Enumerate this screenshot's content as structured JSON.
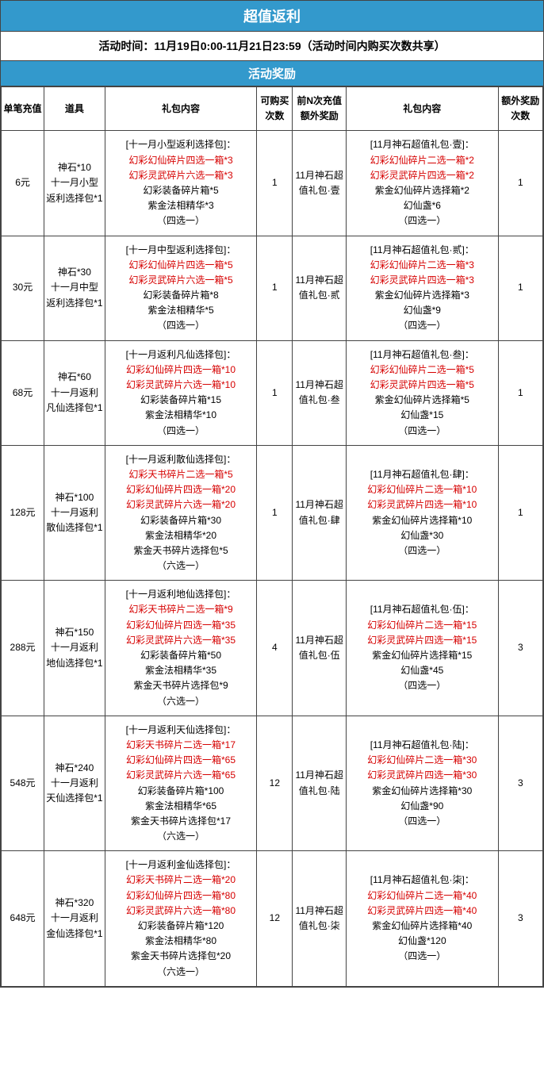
{
  "header": {
    "title": "超值返利"
  },
  "subheader": {
    "text": "活动时间：11月19日0:00-11月21日23:59（活动时间内购买次数共享）"
  },
  "section": {
    "title": "活动奖励"
  },
  "columns": {
    "c1": "单笔充值",
    "c2": "道具",
    "c3": "礼包内容",
    "c4": "可购买次数",
    "c5": "前N次充值额外奖励",
    "c6": "礼包内容",
    "c7": "额外奖励次数"
  },
  "rows": [
    {
      "price": "6元",
      "item": "神石*10\n十一月小型返利选择包*1",
      "content1": [
        {
          "t": "[十一月小型返利选择包]：",
          "c": "black"
        },
        {
          "t": "幻彩幻仙碎片四选一箱*3",
          "c": "red"
        },
        {
          "t": "幻彩灵武碎片六选一箱*3",
          "c": "red"
        },
        {
          "t": "幻彩装备碎片箱*5",
          "c": "black"
        },
        {
          "t": "紫金法相精华*3",
          "c": "black"
        },
        {
          "t": "（四选一）",
          "c": "black"
        }
      ],
      "count": "1",
      "reward": "11月神石超值礼包·壹",
      "content2": [
        {
          "t": "[11月神石超值礼包·壹]：",
          "c": "black"
        },
        {
          "t": "幻彩幻仙碎片二选一箱*2",
          "c": "red"
        },
        {
          "t": "幻彩灵武碎片四选一箱*2",
          "c": "red"
        },
        {
          "t": "紫金幻仙碎片选择箱*2",
          "c": "black"
        },
        {
          "t": "幻仙盏*6",
          "c": "black"
        },
        {
          "t": "（四选一）",
          "c": "black"
        }
      ],
      "extracount": "1"
    },
    {
      "price": "30元",
      "item": "神石*30\n十一月中型返利选择包*1",
      "content1": [
        {
          "t": "[十一月中型返利选择包]：",
          "c": "black"
        },
        {
          "t": "幻彩幻仙碎片四选一箱*5",
          "c": "red"
        },
        {
          "t": "幻彩灵武碎片六选一箱*5",
          "c": "red"
        },
        {
          "t": "幻彩装备碎片箱*8",
          "c": "black"
        },
        {
          "t": "紫金法相精华*5",
          "c": "black"
        },
        {
          "t": "（四选一）",
          "c": "black"
        }
      ],
      "count": "1",
      "reward": "11月神石超值礼包·贰",
      "content2": [
        {
          "t": "[11月神石超值礼包·贰]：",
          "c": "black"
        },
        {
          "t": "幻彩幻仙碎片二选一箱*3",
          "c": "red"
        },
        {
          "t": "幻彩灵武碎片四选一箱*3",
          "c": "red"
        },
        {
          "t": "紫金幻仙碎片选择箱*3",
          "c": "black"
        },
        {
          "t": "幻仙盏*9",
          "c": "black"
        },
        {
          "t": "（四选一）",
          "c": "black"
        }
      ],
      "extracount": "1"
    },
    {
      "price": "68元",
      "item": "神石*60\n十一月返利凡仙选择包*1",
      "content1": [
        {
          "t": "[十一月返利凡仙选择包]：",
          "c": "black"
        },
        {
          "t": "幻彩幻仙碎片四选一箱*10",
          "c": "red"
        },
        {
          "t": "幻彩灵武碎片六选一箱*10",
          "c": "red"
        },
        {
          "t": "幻彩装备碎片箱*15",
          "c": "black"
        },
        {
          "t": "紫金法相精华*10",
          "c": "black"
        },
        {
          "t": "（四选一）",
          "c": "black"
        }
      ],
      "count": "1",
      "reward": "11月神石超值礼包·叁",
      "content2": [
        {
          "t": "[11月神石超值礼包·叁]：",
          "c": "black"
        },
        {
          "t": "幻彩幻仙碎片二选一箱*5",
          "c": "red"
        },
        {
          "t": "幻彩灵武碎片四选一箱*5",
          "c": "red"
        },
        {
          "t": "紫金幻仙碎片选择箱*5",
          "c": "black"
        },
        {
          "t": "幻仙盏*15",
          "c": "black"
        },
        {
          "t": "（四选一）",
          "c": "black"
        }
      ],
      "extracount": "1"
    },
    {
      "price": "128元",
      "item": "神石*100\n十一月返利散仙选择包*1",
      "content1": [
        {
          "t": "[十一月返利散仙选择包]：",
          "c": "black"
        },
        {
          "t": "幻彩天书碎片二选一箱*5",
          "c": "red"
        },
        {
          "t": "幻彩幻仙碎片四选一箱*20",
          "c": "red"
        },
        {
          "t": "幻彩灵武碎片六选一箱*20",
          "c": "red"
        },
        {
          "t": "幻彩装备碎片箱*30",
          "c": "black"
        },
        {
          "t": "紫金法相精华*20",
          "c": "black"
        },
        {
          "t": "紫金天书碎片选择包*5",
          "c": "black"
        },
        {
          "t": "（六选一）",
          "c": "black"
        }
      ],
      "count": "1",
      "reward": "11月神石超值礼包·肆",
      "content2": [
        {
          "t": "[11月神石超值礼包·肆]：",
          "c": "black"
        },
        {
          "t": "幻彩幻仙碎片二选一箱*10",
          "c": "red"
        },
        {
          "t": "幻彩灵武碎片四选一箱*10",
          "c": "red"
        },
        {
          "t": "紫金幻仙碎片选择箱*10",
          "c": "black"
        },
        {
          "t": "幻仙盏*30",
          "c": "black"
        },
        {
          "t": "（四选一）",
          "c": "black"
        }
      ],
      "extracount": "1"
    },
    {
      "price": "288元",
      "item": "神石*150\n十一月返利地仙选择包*1",
      "content1": [
        {
          "t": "[十一月返利地仙选择包]：",
          "c": "black"
        },
        {
          "t": "幻彩天书碎片二选一箱*9",
          "c": "red"
        },
        {
          "t": "幻彩幻仙碎片四选一箱*35",
          "c": "red"
        },
        {
          "t": "幻彩灵武碎片六选一箱*35",
          "c": "red"
        },
        {
          "t": "幻彩装备碎片箱*50",
          "c": "black"
        },
        {
          "t": "紫金法相精华*35",
          "c": "black"
        },
        {
          "t": "紫金天书碎片选择包*9",
          "c": "black"
        },
        {
          "t": "（六选一）",
          "c": "black"
        }
      ],
      "count": "4",
      "reward": "11月神石超值礼包·伍",
      "content2": [
        {
          "t": "[11月神石超值礼包·伍]：",
          "c": "black"
        },
        {
          "t": "幻彩幻仙碎片二选一箱*15",
          "c": "red"
        },
        {
          "t": "幻彩灵武碎片四选一箱*15",
          "c": "red"
        },
        {
          "t": "紫金幻仙碎片选择箱*15",
          "c": "black"
        },
        {
          "t": "幻仙盏*45",
          "c": "black"
        },
        {
          "t": "（四选一）",
          "c": "black"
        }
      ],
      "extracount": "3"
    },
    {
      "price": "548元",
      "item": "神石*240\n十一月返利天仙选择包*1",
      "content1": [
        {
          "t": "[十一月返利天仙选择包]：",
          "c": "black"
        },
        {
          "t": "幻彩天书碎片二选一箱*17",
          "c": "red"
        },
        {
          "t": "幻彩幻仙碎片四选一箱*65",
          "c": "red"
        },
        {
          "t": "幻彩灵武碎片六选一箱*65",
          "c": "red"
        },
        {
          "t": "幻彩装备碎片箱*100",
          "c": "black"
        },
        {
          "t": "紫金法相精华*65",
          "c": "black"
        },
        {
          "t": "紫金天书碎片选择包*17",
          "c": "black"
        },
        {
          "t": "（六选一）",
          "c": "black"
        }
      ],
      "count": "12",
      "reward": "11月神石超值礼包·陆",
      "content2": [
        {
          "t": "[11月神石超值礼包·陆]：",
          "c": "black"
        },
        {
          "t": "幻彩幻仙碎片二选一箱*30",
          "c": "red"
        },
        {
          "t": "幻彩灵武碎片四选一箱*30",
          "c": "red"
        },
        {
          "t": "紫金幻仙碎片选择箱*30",
          "c": "black"
        },
        {
          "t": "幻仙盏*90",
          "c": "black"
        },
        {
          "t": "（四选一）",
          "c": "black"
        }
      ],
      "extracount": "3"
    },
    {
      "price": "648元",
      "item": "神石*320\n十一月返利金仙选择包*1",
      "content1": [
        {
          "t": "[十一月返利金仙选择包]：",
          "c": "black"
        },
        {
          "t": "幻彩天书碎片二选一箱*20",
          "c": "red"
        },
        {
          "t": "幻彩幻仙碎片四选一箱*80",
          "c": "red"
        },
        {
          "t": "幻彩灵武碎片六选一箱*80",
          "c": "red"
        },
        {
          "t": "幻彩装备碎片箱*120",
          "c": "black"
        },
        {
          "t": "紫金法相精华*80",
          "c": "black"
        },
        {
          "t": "紫金天书碎片选择包*20",
          "c": "black"
        },
        {
          "t": "（六选一）",
          "c": "black"
        }
      ],
      "count": "12",
      "reward": "11月神石超值礼包·柒",
      "content2": [
        {
          "t": "[11月神石超值礼包·柒]：",
          "c": "black"
        },
        {
          "t": "幻彩幻仙碎片二选一箱*40",
          "c": "red"
        },
        {
          "t": "幻彩灵武碎片四选一箱*40",
          "c": "red"
        },
        {
          "t": "紫金幻仙碎片选择箱*40",
          "c": "black"
        },
        {
          "t": "幻仙盏*120",
          "c": "black"
        },
        {
          "t": "（四选一）",
          "c": "black"
        }
      ],
      "extracount": "3"
    }
  ]
}
